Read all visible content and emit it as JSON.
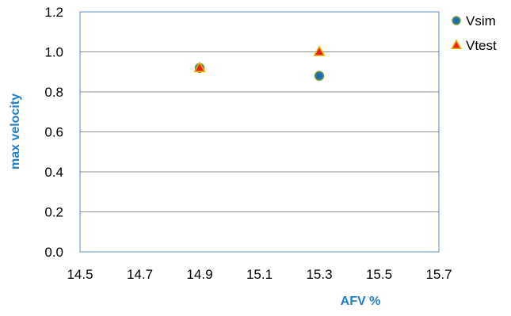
{
  "chart_data": {
    "type": "scatter",
    "xlabel": "AFV %",
    "ylabel": "max velocity",
    "xlim": [
      14.5,
      15.7
    ],
    "ylim": [
      0.0,
      1.2
    ],
    "x_ticks": [
      "14.5",
      "14.7",
      "14.9",
      "15.1",
      "15.3",
      "15.5",
      "15.7"
    ],
    "y_ticks": [
      "0.0",
      "0.2",
      "0.4",
      "0.6",
      "0.8",
      "1.0",
      "1.2"
    ],
    "grid": "horizontal",
    "legend_position": "right",
    "series": [
      {
        "name": "Vsim",
        "marker": "circle",
        "color": "#1f6fb2",
        "edge_color": "#7a9a3a",
        "points": [
          {
            "x": 14.9,
            "y": 0.92
          },
          {
            "x": 15.3,
            "y": 0.88
          }
        ]
      },
      {
        "name": "Vtest",
        "marker": "triangle",
        "color": "#e8231b",
        "edge_color": "#e8b400",
        "points": [
          {
            "x": 14.9,
            "y": 0.92
          },
          {
            "x": 15.3,
            "y": 1.0
          }
        ]
      }
    ],
    "colors": {
      "axis_title": "#1f7fc7",
      "plot_border": "#5b8fc5",
      "gridline": "#8c8c8c"
    }
  }
}
